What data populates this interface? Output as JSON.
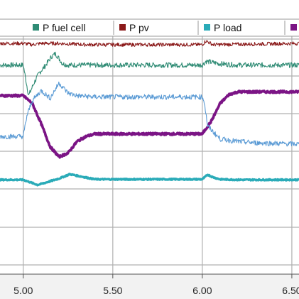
{
  "chart_data": {
    "type": "line",
    "grid": true,
    "legend_position": "top",
    "x_ticks": [
      5.0,
      5.5,
      6.0,
      6.5
    ],
    "x_tick_labels": [
      "5.00",
      "5.50",
      "6.00",
      "6.50"
    ],
    "xlim": [
      4.87,
      6.54
    ],
    "ylim": [
      0,
      10
    ],
    "series": [
      {
        "name": "P fuel cell",
        "color": "#2e8b74",
        "noise": 0.1,
        "x": [
          4.87,
          5.0,
          5.02,
          5.03,
          5.06,
          5.09,
          5.12,
          5.16,
          5.18,
          5.2,
          5.22,
          5.25,
          5.35,
          6.0,
          6.02,
          6.1,
          6.2,
          6.54
        ],
        "y": [
          8.2,
          8.2,
          7.4,
          7.0,
          7.5,
          7.9,
          8.15,
          8.55,
          8.65,
          8.45,
          8.25,
          8.2,
          8.2,
          8.2,
          8.35,
          8.25,
          8.2,
          8.2
        ]
      },
      {
        "name": "P pv",
        "color": "#8b1a1a",
        "noise": 0.07,
        "x": [
          4.87,
          5.0,
          5.05,
          5.1,
          5.2,
          5.35,
          6.0,
          6.02,
          6.06,
          6.54
        ],
        "y": [
          9.05,
          9.05,
          9.0,
          9.05,
          9.05,
          9.0,
          9.0,
          9.15,
          9.0,
          9.05
        ]
      },
      {
        "name": "P load",
        "color": "#2aabb8",
        "noise": 0.025,
        "x": [
          4.87,
          5.0,
          5.08,
          5.13,
          5.2,
          5.26,
          5.33,
          5.4,
          5.5,
          6.0,
          6.03,
          6.06,
          6.1,
          6.2,
          6.54
        ],
        "y": [
          3.7,
          3.7,
          3.5,
          3.6,
          3.75,
          3.92,
          3.82,
          3.72,
          3.72,
          3.72,
          3.9,
          3.8,
          3.72,
          3.7,
          3.7
        ]
      },
      {
        "name": "",
        "color": "#7b1485",
        "noise": 0.04,
        "x": [
          4.87,
          5.0,
          5.05,
          5.1,
          5.15,
          5.2,
          5.25,
          5.3,
          5.35,
          5.4,
          5.5,
          5.6,
          6.0,
          6.05,
          6.1,
          6.15,
          6.2,
          6.25,
          6.54
        ],
        "y": [
          7.0,
          7.0,
          6.7,
          5.9,
          5.0,
          4.6,
          4.75,
          5.2,
          5.4,
          5.5,
          5.5,
          5.5,
          5.5,
          6.0,
          6.7,
          7.05,
          7.15,
          7.15,
          7.15
        ]
      },
      {
        "name": "",
        "color": "#5b9bd5",
        "noise": 0.1,
        "x": [
          4.87,
          5.0,
          5.02,
          5.05,
          5.1,
          5.15,
          5.2,
          5.25,
          5.3,
          5.4,
          5.5,
          5.6,
          5.8,
          6.0,
          6.01,
          6.03,
          6.1,
          6.2,
          6.3,
          6.54
        ],
        "y": [
          5.4,
          5.4,
          6.2,
          6.8,
          7.2,
          6.9,
          7.5,
          7.1,
          7.0,
          6.95,
          6.95,
          6.95,
          6.95,
          6.95,
          6.8,
          5.8,
          5.3,
          5.2,
          5.15,
          5.1
        ]
      }
    ]
  }
}
